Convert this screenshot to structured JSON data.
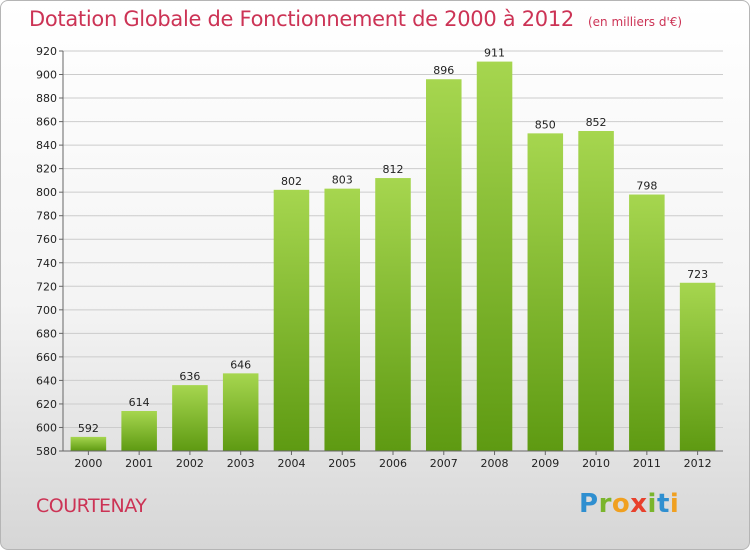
{
  "header": {
    "title": "Dotation Globale de Fonctionnement de 2000 à 2012",
    "subtitle": "(en milliers d'€)"
  },
  "footer": {
    "commune": "COURTENAY",
    "logo_letters": [
      {
        "char": "P",
        "color": "#2f8fd0"
      },
      {
        "char": "r",
        "color": "#7ab52c"
      },
      {
        "char": "o",
        "color": "#f0a020"
      },
      {
        "char": "x",
        "color": "#e8402c"
      },
      {
        "char": "i",
        "color": "#7ab52c"
      },
      {
        "char": "t",
        "color": "#2f8fd0"
      },
      {
        "char": "i",
        "color": "#f0a020"
      }
    ]
  },
  "colors": {
    "title": "#cc3355",
    "bar_light": "#a6d64f",
    "bar_dark": "#5e9a12",
    "grid": "#cccccc"
  },
  "chart_data": {
    "type": "bar",
    "title": "Dotation Globale de Fonctionnement de 2000 à 2012",
    "subtitle": "(en milliers d'€)",
    "categories": [
      "2000",
      "2001",
      "2002",
      "2003",
      "2004",
      "2005",
      "2006",
      "2007",
      "2008",
      "2009",
      "2010",
      "2011",
      "2012"
    ],
    "values": [
      592,
      614,
      636,
      646,
      802,
      803,
      812,
      896,
      911,
      850,
      852,
      798,
      723
    ],
    "ylim": [
      580,
      920
    ],
    "yticks": [
      580,
      600,
      620,
      640,
      660,
      680,
      700,
      720,
      740,
      760,
      780,
      800,
      820,
      840,
      860,
      880,
      900,
      920
    ],
    "grid": true,
    "legend": "none"
  }
}
